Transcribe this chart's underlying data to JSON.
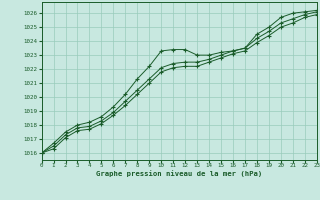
{
  "bg_color": "#c8e8e0",
  "grid_color": "#99ccbb",
  "line_color": "#1a5c2a",
  "title": "Graphe pression niveau de la mer (hPa)",
  "xlim": [
    0,
    23
  ],
  "ylim": [
    1015.5,
    1026.8
  ],
  "yticks": [
    1016,
    1017,
    1018,
    1019,
    1020,
    1021,
    1022,
    1023,
    1024,
    1025,
    1026
  ],
  "xticks": [
    0,
    1,
    2,
    3,
    4,
    5,
    6,
    7,
    8,
    9,
    10,
    11,
    12,
    13,
    14,
    15,
    16,
    17,
    18,
    19,
    20,
    21,
    22,
    23
  ],
  "series1_y": [
    1016.0,
    1016.7,
    1017.5,
    1018.0,
    1018.2,
    1018.6,
    1019.3,
    1020.2,
    1021.3,
    1022.2,
    1023.3,
    1023.4,
    1023.4,
    1023.0,
    1023.0,
    1023.2,
    1023.3,
    1023.5,
    1024.5,
    1025.0,
    1025.7,
    1026.0,
    1026.1,
    1026.2
  ],
  "series2_y": [
    1016.0,
    1016.5,
    1017.3,
    1017.8,
    1017.9,
    1018.3,
    1018.9,
    1019.7,
    1020.5,
    1021.3,
    1022.1,
    1022.4,
    1022.5,
    1022.5,
    1022.7,
    1023.0,
    1023.3,
    1023.5,
    1024.2,
    1024.7,
    1025.3,
    1025.6,
    1025.9,
    1026.1
  ],
  "series3_y": [
    1016.0,
    1016.3,
    1017.1,
    1017.6,
    1017.7,
    1018.1,
    1018.7,
    1019.4,
    1020.2,
    1021.0,
    1021.8,
    1022.1,
    1022.2,
    1022.2,
    1022.5,
    1022.8,
    1023.1,
    1023.3,
    1023.9,
    1024.4,
    1025.0,
    1025.3,
    1025.7,
    1025.9
  ]
}
